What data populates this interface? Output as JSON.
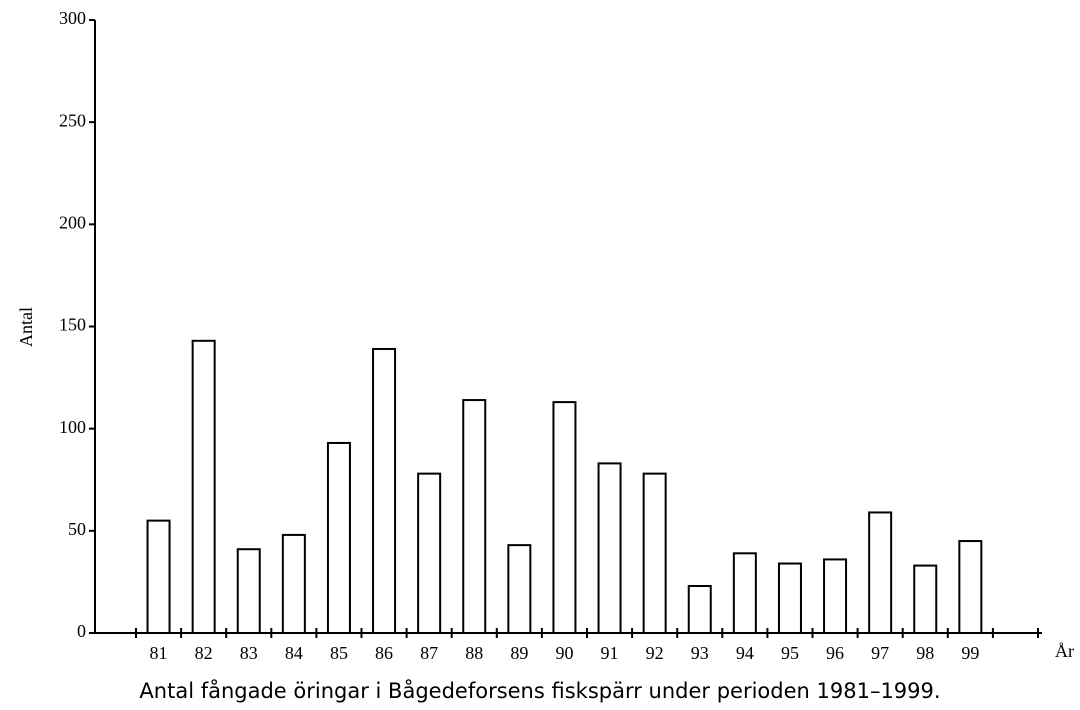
{
  "chart_data": {
    "type": "bar",
    "title": "Antal fångade öringar i Bågedeforsens fiskspärr under perioden 1981–1999.",
    "x_label": "År",
    "y_label": "Antal",
    "categories": [
      "81",
      "82",
      "83",
      "84",
      "85",
      "86",
      "87",
      "88",
      "89",
      "90",
      "91",
      "92",
      "93",
      "94",
      "95",
      "96",
      "97",
      "98",
      "99"
    ],
    "values": [
      55,
      143,
      41,
      48,
      93,
      139,
      78,
      114,
      43,
      113,
      83,
      78,
      23,
      39,
      34,
      36,
      59,
      33,
      45
    ],
    "color": "#ffffff",
    "ylim": [
      0,
      300
    ],
    "yticks": [
      0,
      50,
      100,
      150,
      200,
      250,
      300
    ]
  }
}
